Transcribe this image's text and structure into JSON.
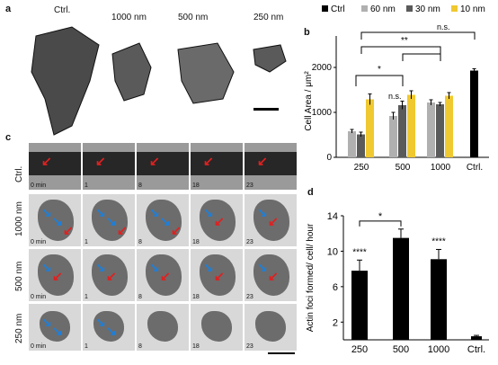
{
  "panel_a": {
    "letter": "a",
    "labels": [
      "Ctrl.",
      "1000 nm",
      "500 nm",
      "250 nm"
    ]
  },
  "panel_b": {
    "letter": "b",
    "legend": [
      "Ctrl",
      "60 nm",
      "30 nm",
      "10 nm"
    ],
    "colors": {
      "Ctrl": "#000000",
      "60 nm": "#b0b0b0",
      "30 nm": "#5a5a5a",
      "10 nm": "#f0c830"
    },
    "sig": [
      "n.s.",
      "**",
      "*",
      "n.s."
    ]
  },
  "panel_c": {
    "letter": "c",
    "rows": [
      "Ctrl.",
      "1000 nm",
      "500 nm",
      "250 nm"
    ],
    "times": [
      "0 min",
      "1",
      "8",
      "18",
      "23"
    ]
  },
  "panel_d": {
    "letter": "d",
    "sig": [
      "****",
      "*",
      "****"
    ]
  },
  "chart_data": [
    {
      "type": "bar",
      "ylabel": "Cell Area / μm²",
      "categories": [
        "250",
        "500",
        "1000",
        "Ctrl."
      ],
      "ylim": [
        0,
        2500
      ],
      "yticks": [
        0,
        1000,
        2000
      ],
      "series": [
        {
          "name": "60 nm",
          "values": [
            580,
            920,
            1220,
            null
          ],
          "errors": [
            40,
            80,
            60,
            null
          ]
        },
        {
          "name": "30 nm",
          "values": [
            510,
            1160,
            1180,
            null
          ],
          "errors": [
            50,
            90,
            40,
            null
          ]
        },
        {
          "name": "10 nm",
          "values": [
            1290,
            1390,
            1370,
            null
          ],
          "errors": [
            120,
            90,
            70,
            null
          ]
        },
        {
          "name": "Ctrl",
          "values": [
            null,
            null,
            null,
            1930
          ],
          "errors": [
            null,
            null,
            null,
            40
          ]
        }
      ]
    },
    {
      "type": "bar",
      "ylabel": "Actin foci formed/ cell/ hour",
      "categories": [
        "250",
        "500",
        "1000",
        "Ctrl."
      ],
      "ylim": [
        0,
        14
      ],
      "yticks": [
        2,
        6,
        10,
        14
      ],
      "values": [
        7.8,
        11.5,
        9.1,
        0.4
      ],
      "errors": [
        1.2,
        1.0,
        1.1,
        0.1
      ]
    }
  ]
}
